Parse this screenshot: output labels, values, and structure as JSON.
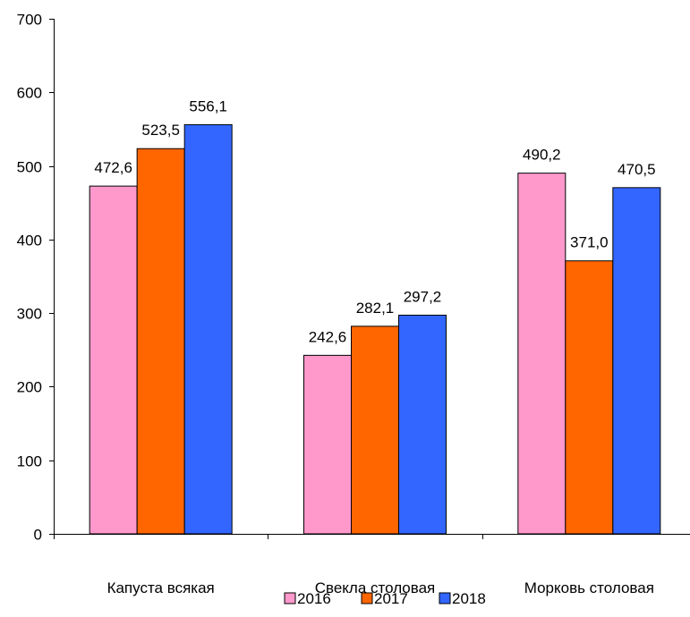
{
  "chart_data": {
    "type": "bar",
    "categories": [
      "Капуста всякая",
      "Свекла столовая",
      "Морковь столовая"
    ],
    "series": [
      {
        "name": "2016",
        "values": [
          472.6,
          242.6,
          490.2
        ],
        "labels": [
          "472,6",
          "242,6",
          "490,2"
        ],
        "color": "#FF99CC"
      },
      {
        "name": "2017",
        "values": [
          523.5,
          282.1,
          371.0
        ],
        "labels": [
          "523,5",
          "282,1",
          "371,0"
        ],
        "color": "#FF6600"
      },
      {
        "name": "2018",
        "values": [
          556.1,
          297.2,
          470.5
        ],
        "labels": [
          "556,1",
          "297,2",
          "470,5"
        ],
        "color": "#3366FF"
      }
    ],
    "ylim": [
      0,
      700
    ],
    "yticks": [
      "0",
      "100",
      "200",
      "300",
      "400",
      "500",
      "600",
      "700"
    ],
    "grid": false,
    "legend_position": "bottom",
    "title": "",
    "xlabel": "",
    "ylabel": ""
  }
}
